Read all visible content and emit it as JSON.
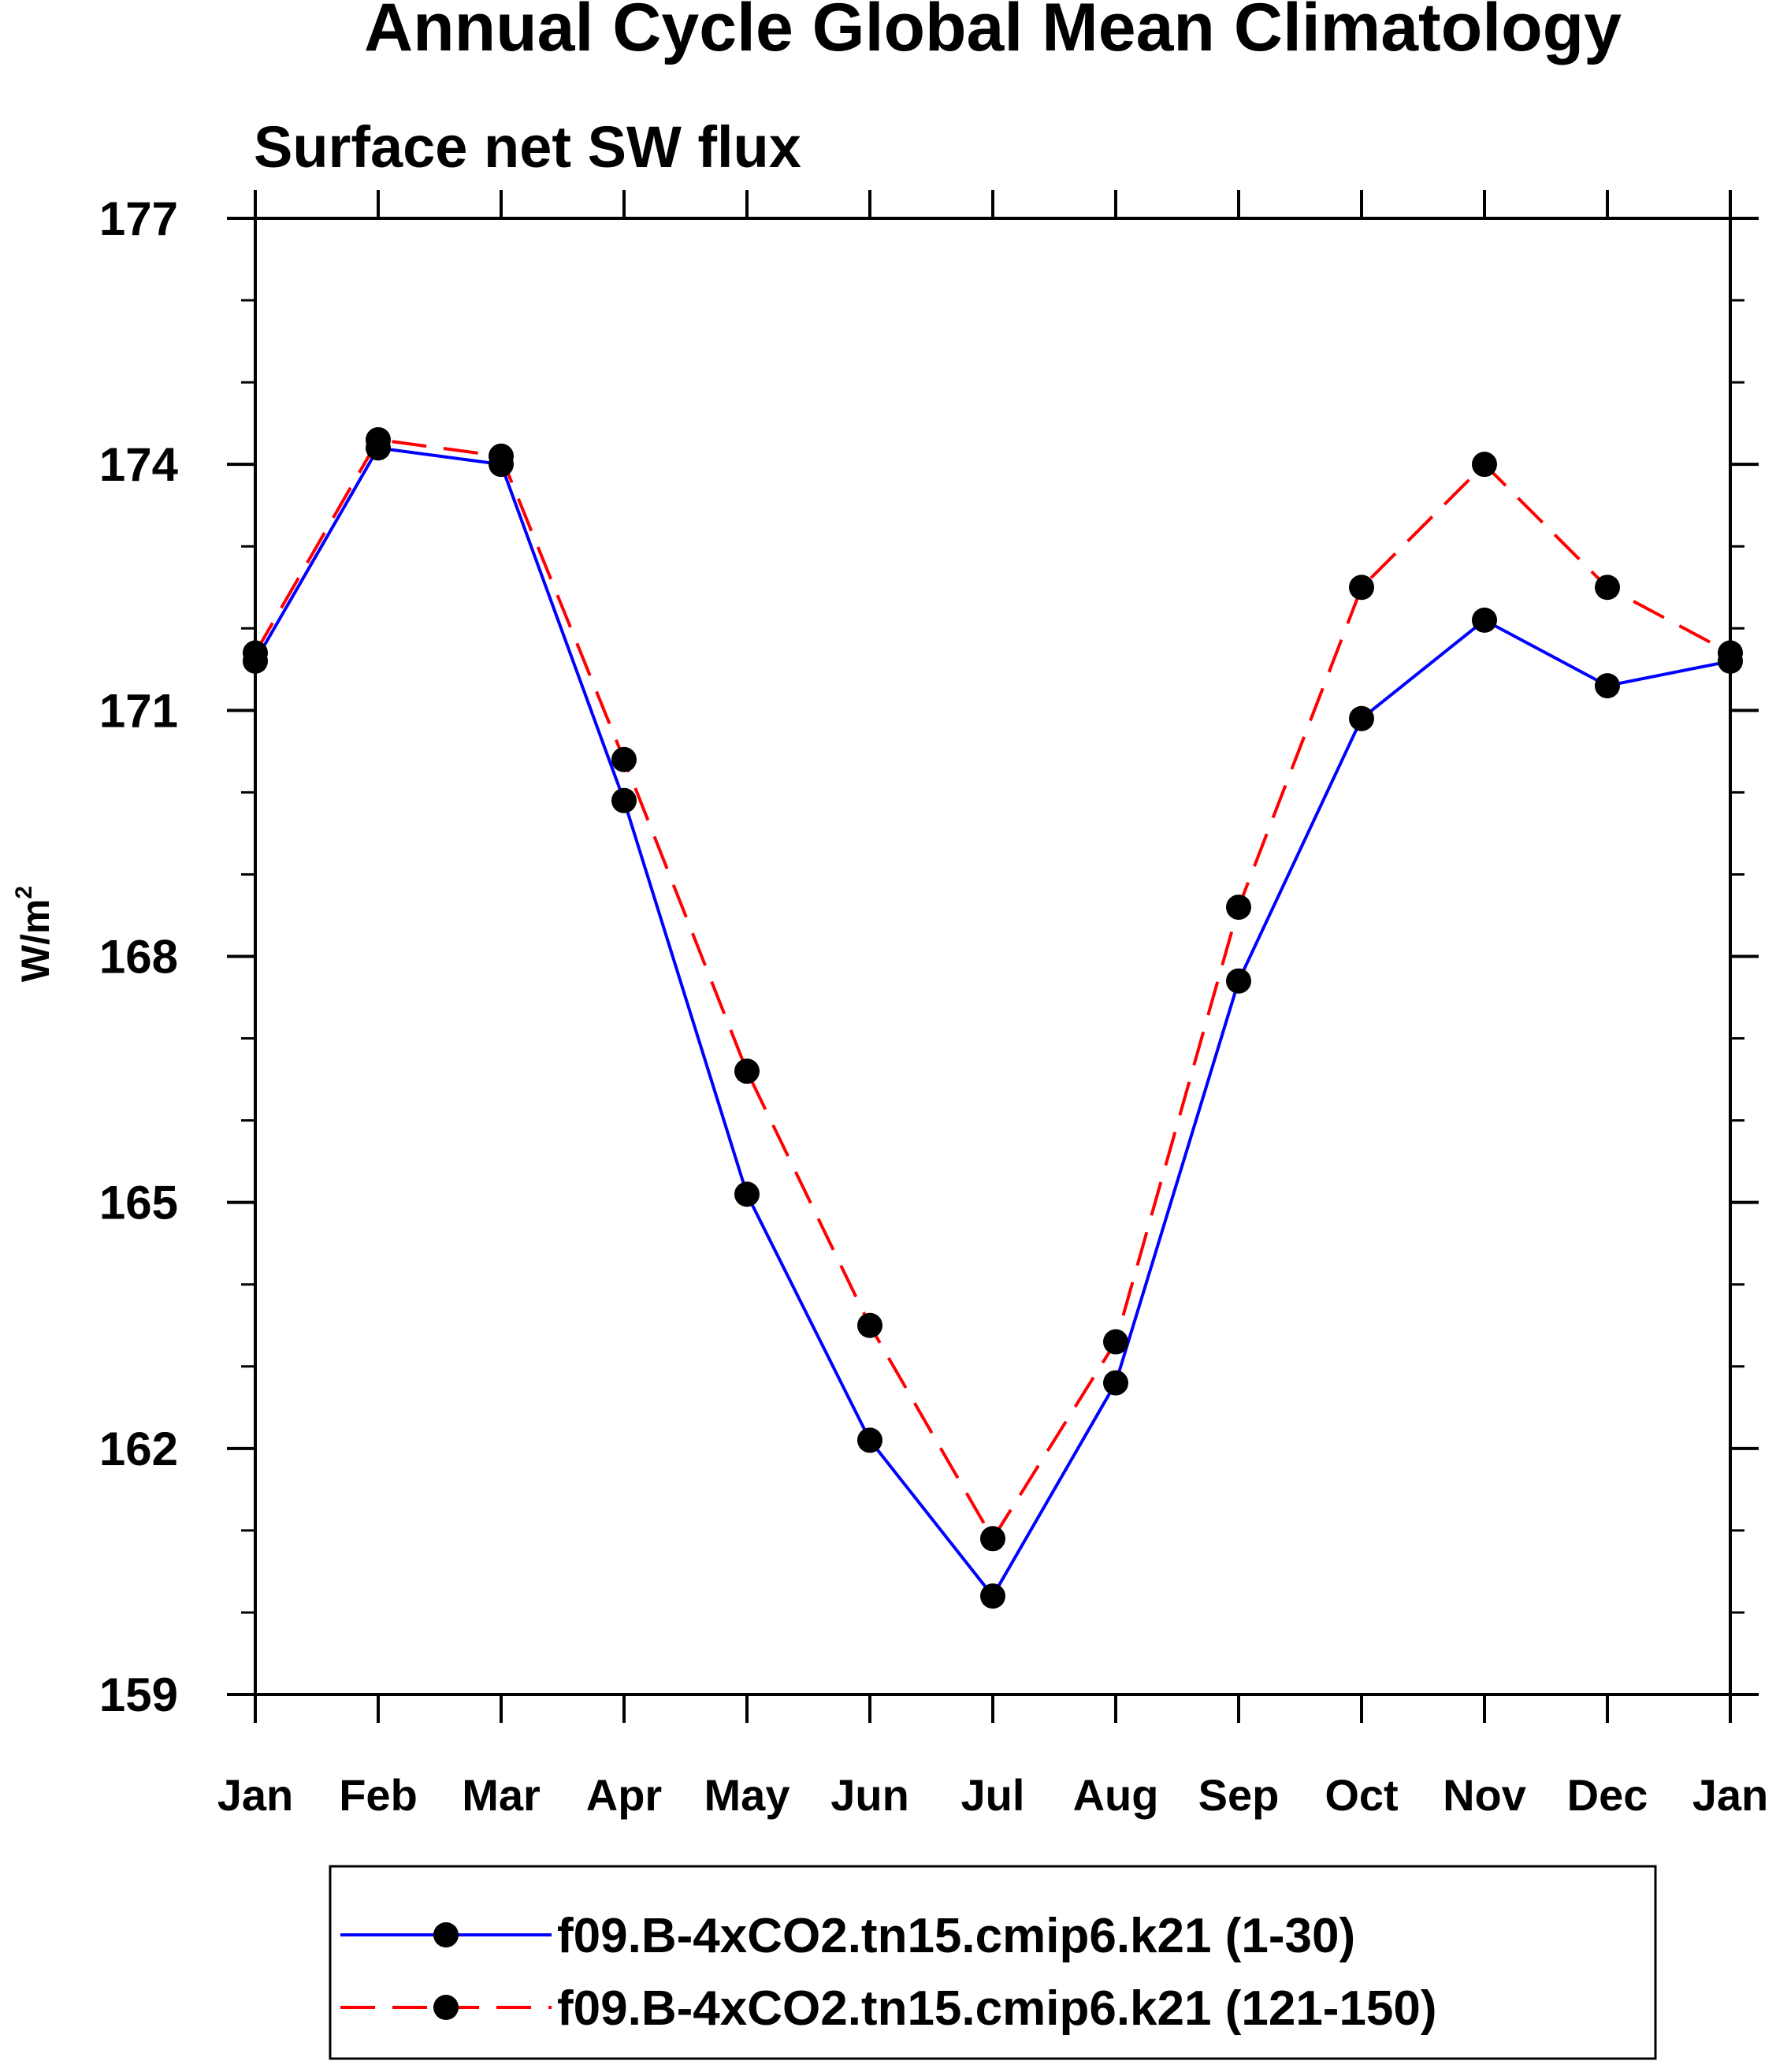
{
  "chart_data": {
    "type": "line",
    "title": "Annual Cycle Global Mean Climatology",
    "subtitle": "Surface net SW flux",
    "xlabel": "",
    "ylabel": "W/m",
    "ylabel_superscript": "2",
    "categories": [
      "Jan",
      "Feb",
      "Mar",
      "Apr",
      "May",
      "Jun",
      "Jul",
      "Aug",
      "Sep",
      "Oct",
      "Nov",
      "Dec",
      "Jan"
    ],
    "ylim": [
      159,
      177
    ],
    "yticks": [
      159,
      162,
      165,
      168,
      171,
      174,
      177
    ],
    "y_minor_step": 1,
    "grid": false,
    "legend_position": "bottom",
    "series": [
      {
        "name": "f09.B-4xCO2.tn15.cmip6.k21 (1-30)",
        "color": "#0000ff",
        "dash": "solid",
        "values": [
          171.6,
          174.2,
          174.0,
          169.9,
          165.1,
          162.1,
          160.2,
          162.8,
          167.7,
          170.9,
          172.1,
          171.3,
          171.6
        ]
      },
      {
        "name": "f09.B-4xCO2.tn15.cmip6.k21 (121-150)",
        "color": "#ff0000",
        "dash": "dashed",
        "values": [
          171.7,
          174.3,
          174.1,
          170.4,
          166.6,
          163.5,
          160.9,
          163.3,
          168.6,
          172.5,
          174.0,
          172.5,
          171.7
        ]
      }
    ]
  }
}
